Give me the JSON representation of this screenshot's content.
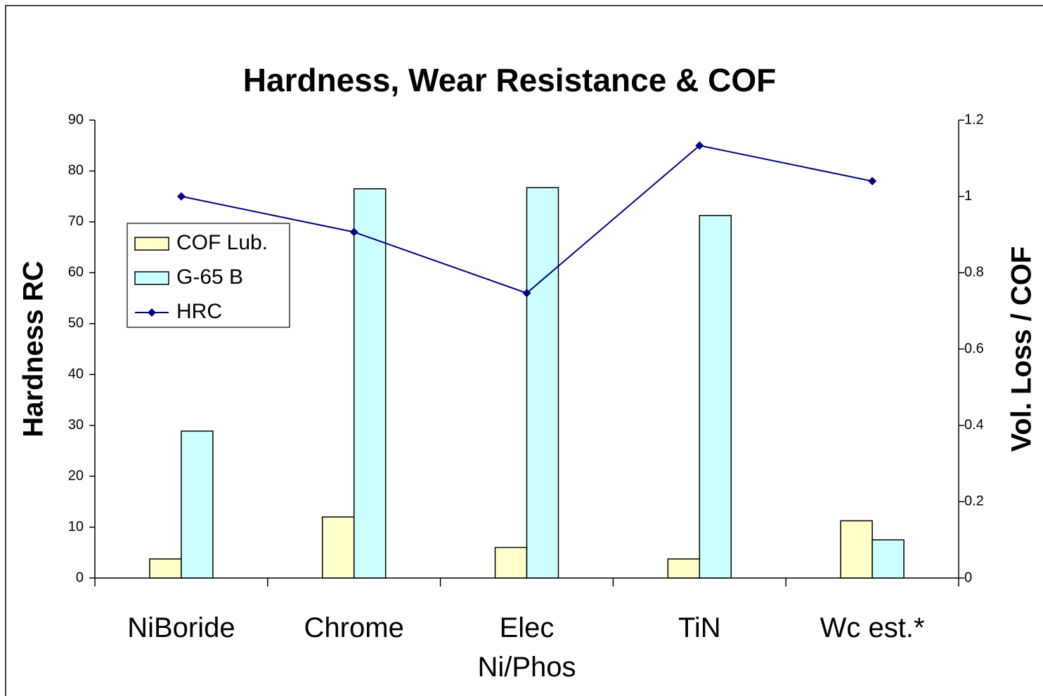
{
  "chart_data": {
    "type": "bar",
    "title": "Hardness, Wear Resistance & COF",
    "ylabel": "Hardness RC",
    "y2label": "Vol. Loss / COF",
    "categories": [
      "NiBoride",
      "Chrome",
      "Elec\nNi/Phos",
      "TiN",
      "Wc est.*"
    ],
    "series": [
      {
        "name": "COF Lub.",
        "color": "#ffffcc",
        "axis": "y2",
        "type": "bar",
        "values": [
          0.05,
          0.16,
          0.08,
          0.05,
          0.15
        ]
      },
      {
        "name": "G-65 B",
        "color": "#ccffff",
        "axis": "y2",
        "type": "bar",
        "values": [
          0.385,
          1.02,
          1.023,
          0.95,
          0.1
        ]
      },
      {
        "name": "HRC",
        "color": "#000080",
        "axis": "y",
        "type": "line",
        "values": [
          75,
          68,
          56,
          85,
          78
        ]
      }
    ],
    "ylim": [
      0,
      90
    ],
    "yticks": [
      0,
      10,
      20,
      30,
      40,
      50,
      60,
      70,
      80,
      90
    ],
    "y2lim": [
      0,
      1.2
    ],
    "y2ticks": [
      0,
      0.2,
      0.4,
      0.6,
      0.8,
      1,
      1.2
    ],
    "grid": false,
    "legend": "upper left"
  }
}
